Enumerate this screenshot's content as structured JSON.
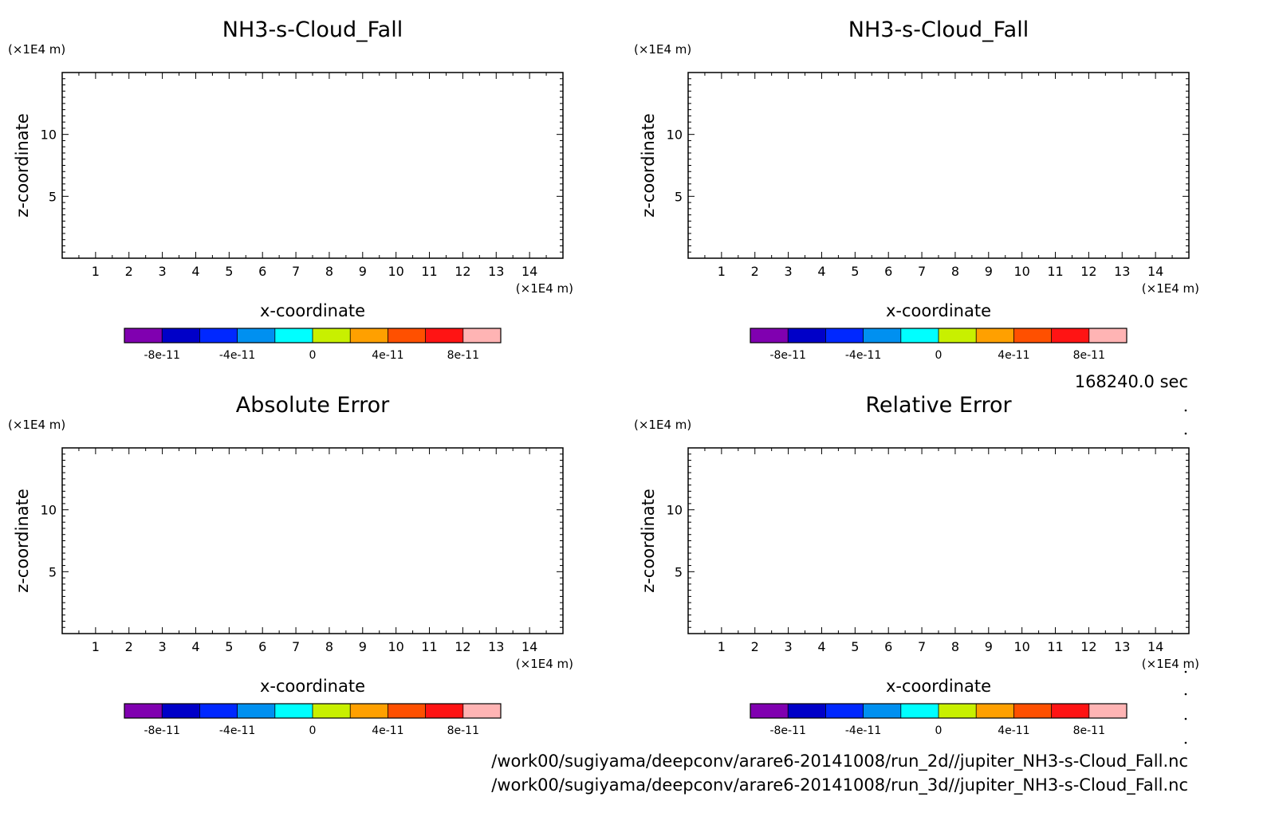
{
  "chart_data": [
    {
      "type": "heatmap",
      "title": "NH3-s-Cloud_Fall",
      "xlabel": "x-coordinate",
      "ylabel": "z-coordinate",
      "x_unit": "(×1E4 m)",
      "y_unit": "(×1E4 m)",
      "xlim": [
        0,
        15
      ],
      "ylim": [
        0,
        15
      ],
      "x_ticks": [
        "1",
        "2",
        "3",
        "4",
        "5",
        "6",
        "7",
        "8",
        "9",
        "10",
        "11",
        "12",
        "13",
        "14"
      ],
      "y_ticks": [
        "5",
        "10"
      ],
      "values": [],
      "colorbar": {
        "colors": [
          "#8000b0",
          "#0000c8",
          "#0028ff",
          "#0090f0",
          "#00ffff",
          "#c8f000",
          "#ffa000",
          "#ff5000",
          "#ff1414",
          "#ffb4b4"
        ],
        "tick_labels": [
          "-8e-11",
          "-4e-11",
          "0",
          "4e-11",
          "8e-11"
        ],
        "range": [
          -1e-10,
          1e-10
        ]
      }
    },
    {
      "type": "heatmap",
      "title": "NH3-s-Cloud_Fall",
      "xlabel": "x-coordinate",
      "ylabel": "z-coordinate",
      "x_unit": "(×1E4 m)",
      "y_unit": "(×1E4 m)",
      "xlim": [
        0,
        15
      ],
      "ylim": [
        0,
        15
      ],
      "x_ticks": [
        "1",
        "2",
        "3",
        "4",
        "5",
        "6",
        "7",
        "8",
        "9",
        "10",
        "11",
        "12",
        "13",
        "14"
      ],
      "y_ticks": [
        "5",
        "10"
      ],
      "values": [],
      "colorbar": {
        "colors": [
          "#8000b0",
          "#0000c8",
          "#0028ff",
          "#0090f0",
          "#00ffff",
          "#c8f000",
          "#ffa000",
          "#ff5000",
          "#ff1414",
          "#ffb4b4"
        ],
        "tick_labels": [
          "-8e-11",
          "-4e-11",
          "0",
          "4e-11",
          "8e-11"
        ],
        "range": [
          -1e-10,
          1e-10
        ]
      }
    },
    {
      "type": "heatmap",
      "title": "Absolute Error",
      "xlabel": "x-coordinate",
      "ylabel": "z-coordinate",
      "x_unit": "(×1E4 m)",
      "y_unit": "(×1E4 m)",
      "xlim": [
        0,
        15
      ],
      "ylim": [
        0,
        15
      ],
      "x_ticks": [
        "1",
        "2",
        "3",
        "4",
        "5",
        "6",
        "7",
        "8",
        "9",
        "10",
        "11",
        "12",
        "13",
        "14"
      ],
      "y_ticks": [
        "5",
        "10"
      ],
      "values": [],
      "colorbar": {
        "colors": [
          "#8000b0",
          "#0000c8",
          "#0028ff",
          "#0090f0",
          "#00ffff",
          "#c8f000",
          "#ffa000",
          "#ff5000",
          "#ff1414",
          "#ffb4b4"
        ],
        "tick_labels": [
          "-8e-11",
          "-4e-11",
          "0",
          "4e-11",
          "8e-11"
        ],
        "range": [
          -1e-10,
          1e-10
        ]
      }
    },
    {
      "type": "heatmap",
      "title": "Relative Error",
      "xlabel": "x-coordinate",
      "ylabel": "z-coordinate",
      "x_unit": "(×1E4 m)",
      "y_unit": "(×1E4 m)",
      "xlim": [
        0,
        15
      ],
      "ylim": [
        0,
        15
      ],
      "x_ticks": [
        "1",
        "2",
        "3",
        "4",
        "5",
        "6",
        "7",
        "8",
        "9",
        "10",
        "11",
        "12",
        "13",
        "14"
      ],
      "y_ticks": [
        "5",
        "10"
      ],
      "values": [],
      "colorbar": {
        "colors": [
          "#8000b0",
          "#0000c8",
          "#0028ff",
          "#0090f0",
          "#00ffff",
          "#c8f000",
          "#ffa000",
          "#ff5000",
          "#ff1414",
          "#ffb4b4"
        ],
        "tick_labels": [
          "-8e-11",
          "-4e-11",
          "0",
          "4e-11",
          "8e-11"
        ],
        "range": [
          -1e-10,
          1e-10
        ]
      }
    }
  ],
  "time_label": "168240.0 sec",
  "file_paths": [
    "/work00/sugiyama/deepconv/arare6-20141008/run_2d//jupiter_NH3-s-Cloud_Fall.nc",
    "/work00/sugiyama/deepconv/arare6-20141008/run_3d//jupiter_NH3-s-Cloud_Fall.nc"
  ]
}
